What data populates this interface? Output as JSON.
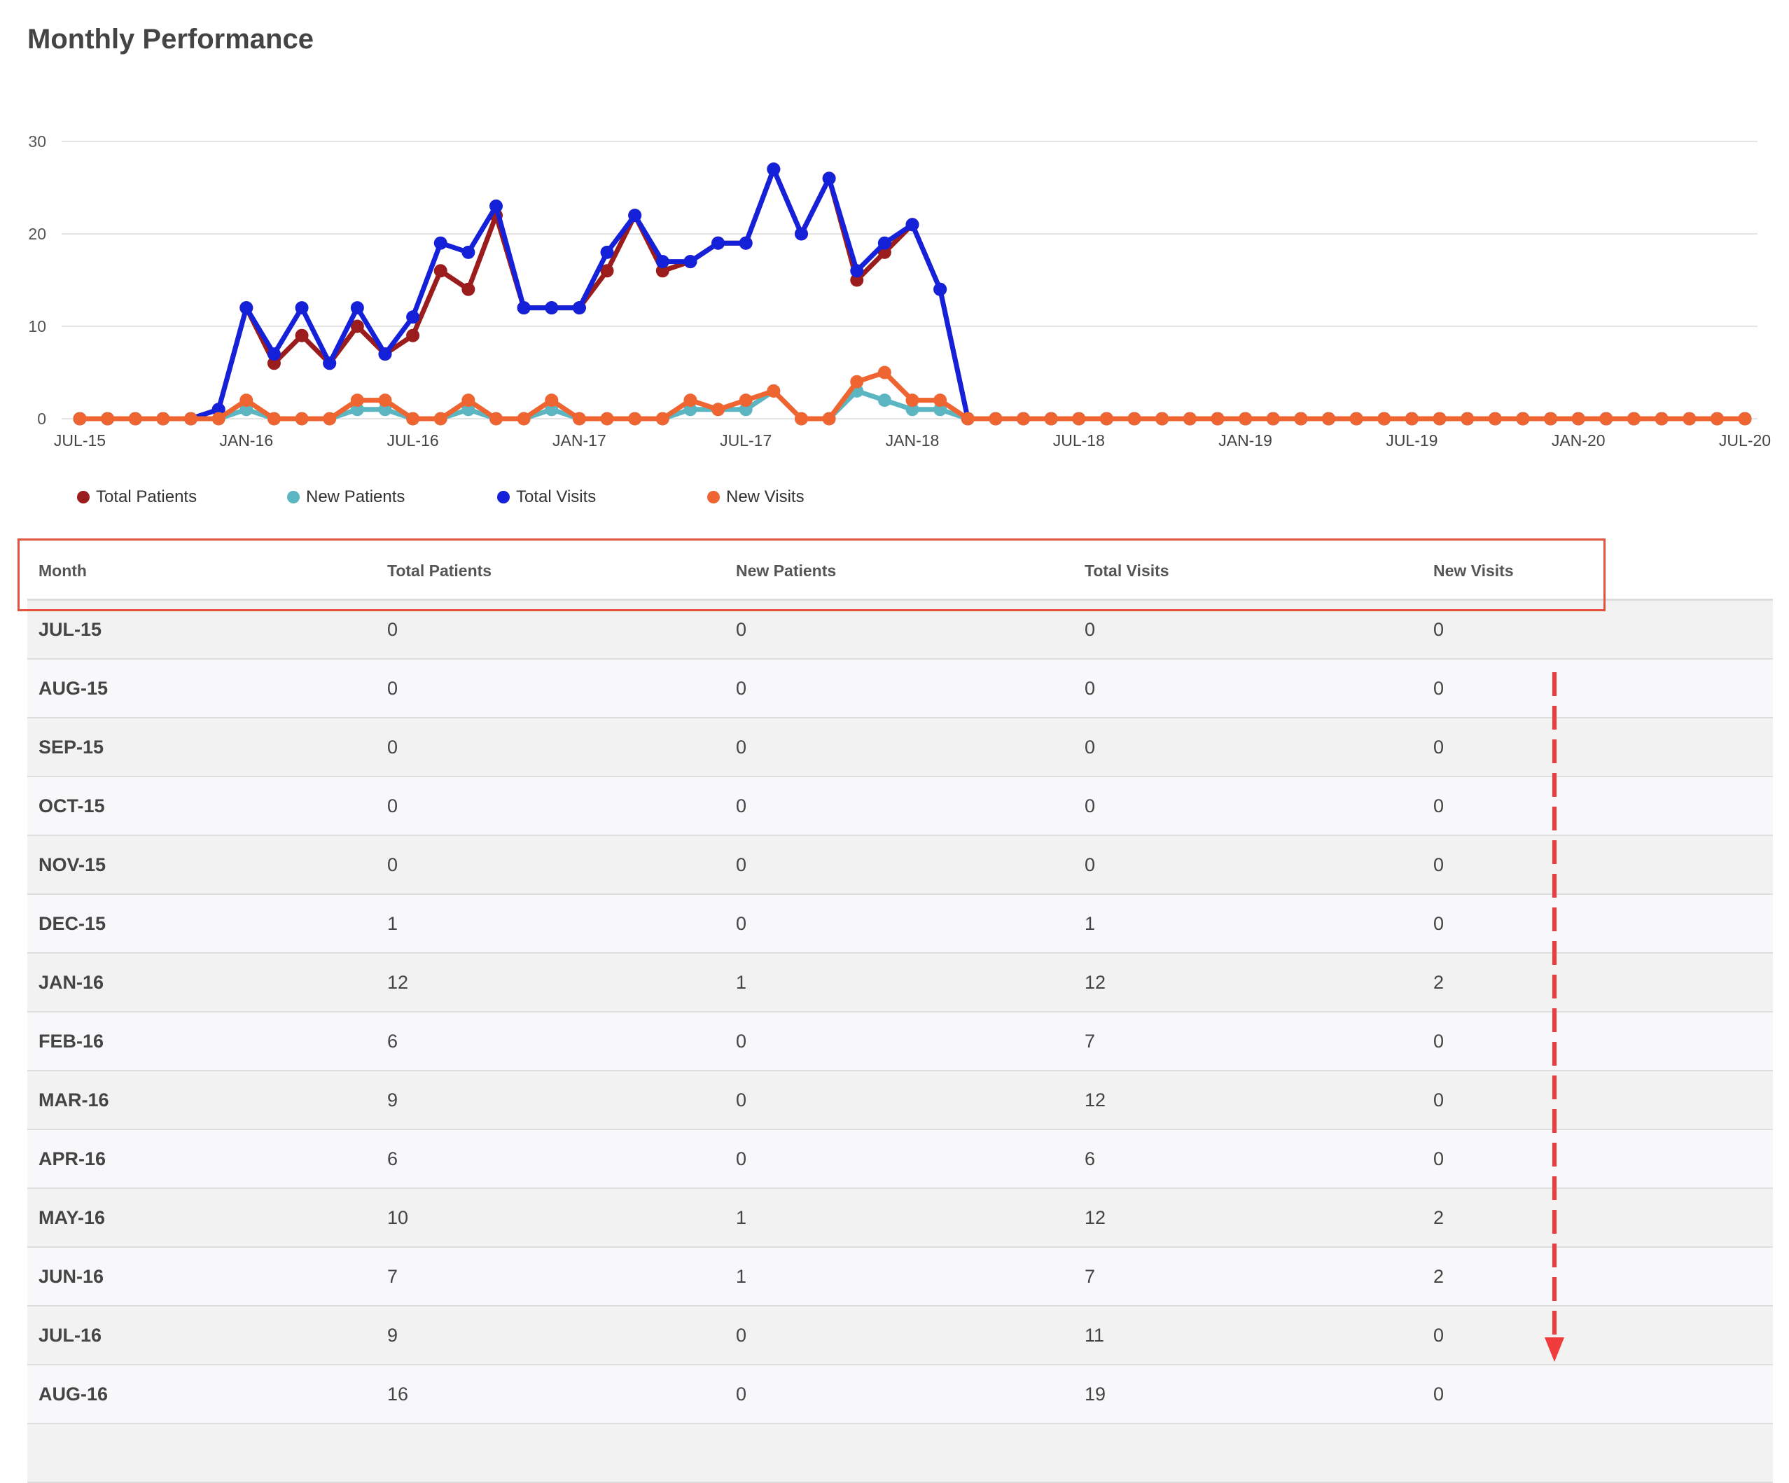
{
  "page": {
    "title": "Monthly Performance"
  },
  "legend": [
    {
      "label": "Total Patients",
      "color": "#9b1c1c"
    },
    {
      "label": "New Patients",
      "color": "#5bb6c1"
    },
    {
      "label": "Total Visits",
      "color": "#1421d8"
    },
    {
      "label": "New Visits",
      "color": "#ef6532"
    }
  ],
  "chart_data": {
    "type": "line",
    "title": "",
    "xlabel": "",
    "ylabel": "",
    "ylim": [
      0,
      30
    ],
    "yticks": [
      "0",
      "10",
      "20",
      "30"
    ],
    "grid": true,
    "legend_position": "bottom-left",
    "x": [
      "JUL-15",
      "AUG-15",
      "SEP-15",
      "OCT-15",
      "NOV-15",
      "DEC-15",
      "JAN-16",
      "FEB-16",
      "MAR-16",
      "APR-16",
      "MAY-16",
      "JUN-16",
      "JUL-16",
      "AUG-16",
      "SEP-16",
      "OCT-16",
      "NOV-16",
      "DEC-16",
      "JAN-17",
      "FEB-17",
      "MAR-17",
      "APR-17",
      "MAY-17",
      "JUN-17",
      "JUL-17",
      "AUG-17",
      "SEP-17",
      "OCT-17",
      "NOV-17",
      "DEC-17",
      "JAN-18",
      "FEB-18",
      "MAR-18",
      "APR-18",
      "MAY-18",
      "JUN-18",
      "JUL-18",
      "AUG-18",
      "SEP-18",
      "OCT-18",
      "NOV-18",
      "DEC-18",
      "JAN-19",
      "FEB-19",
      "MAR-19",
      "APR-19",
      "MAY-19",
      "JUN-19",
      "JUL-19",
      "AUG-19",
      "SEP-19",
      "OCT-19",
      "NOV-19",
      "DEC-19",
      "JAN-20",
      "FEB-20",
      "MAR-20",
      "APR-20",
      "MAY-20",
      "JUN-20",
      "JUL-20"
    ],
    "xtick_labels": [
      "JUL-15",
      "JAN-16",
      "JUL-16",
      "JAN-17",
      "JUL-17",
      "JAN-18",
      "JUL-18",
      "JAN-19",
      "JUL-19",
      "JAN-20",
      "JUL-20"
    ],
    "series": [
      {
        "name": "Total Patients",
        "color": "#9b1c1c",
        "values": [
          0,
          0,
          0,
          0,
          0,
          1,
          12,
          6,
          9,
          6,
          10,
          7,
          9,
          16,
          14,
          22,
          12,
          12,
          12,
          16,
          22,
          16,
          17,
          19,
          19,
          27,
          20,
          26,
          15,
          18,
          21,
          14,
          0,
          0,
          0,
          0,
          0,
          0,
          0,
          0,
          0,
          0,
          0,
          0,
          0,
          0,
          0,
          0,
          0,
          0,
          0,
          0,
          0,
          0,
          0,
          0,
          0,
          0,
          0,
          0,
          0
        ]
      },
      {
        "name": "New Patients",
        "color": "#5bb6c1",
        "values": [
          0,
          0,
          0,
          0,
          0,
          0,
          1,
          0,
          0,
          0,
          1,
          1,
          0,
          0,
          1,
          0,
          0,
          1,
          0,
          0,
          0,
          0,
          1,
          1,
          1,
          3,
          0,
          0,
          3,
          2,
          1,
          1,
          0,
          0,
          0,
          0,
          0,
          0,
          0,
          0,
          0,
          0,
          0,
          0,
          0,
          0,
          0,
          0,
          0,
          0,
          0,
          0,
          0,
          0,
          0,
          0,
          0,
          0,
          0,
          0,
          0
        ]
      },
      {
        "name": "Total Visits",
        "color": "#1421d8",
        "values": [
          0,
          0,
          0,
          0,
          0,
          1,
          12,
          7,
          12,
          6,
          12,
          7,
          11,
          19,
          18,
          23,
          12,
          12,
          12,
          18,
          22,
          17,
          17,
          19,
          19,
          27,
          20,
          26,
          16,
          19,
          21,
          14,
          0,
          0,
          0,
          0,
          0,
          0,
          0,
          0,
          0,
          0,
          0,
          0,
          0,
          0,
          0,
          0,
          0,
          0,
          0,
          0,
          0,
          0,
          0,
          0,
          0,
          0,
          0,
          0,
          0
        ]
      },
      {
        "name": "New Visits",
        "color": "#ef6532",
        "values": [
          0,
          0,
          0,
          0,
          0,
          0,
          2,
          0,
          0,
          0,
          2,
          2,
          0,
          0,
          2,
          0,
          0,
          2,
          0,
          0,
          0,
          0,
          2,
          1,
          2,
          3,
          0,
          0,
          4,
          5,
          2,
          2,
          0,
          0,
          0,
          0,
          0,
          0,
          0,
          0,
          0,
          0,
          0,
          0,
          0,
          0,
          0,
          0,
          0,
          0,
          0,
          0,
          0,
          0,
          0,
          0,
          0,
          0,
          0,
          0,
          0
        ]
      }
    ]
  },
  "table": {
    "headers": [
      "Month",
      "Total Patients",
      "New Patients",
      "Total Visits",
      "New Visits"
    ],
    "rows": [
      [
        "JUL-15",
        "0",
        "0",
        "0",
        "0"
      ],
      [
        "AUG-15",
        "0",
        "0",
        "0",
        "0"
      ],
      [
        "SEP-15",
        "0",
        "0",
        "0",
        "0"
      ],
      [
        "OCT-15",
        "0",
        "0",
        "0",
        "0"
      ],
      [
        "NOV-15",
        "0",
        "0",
        "0",
        "0"
      ],
      [
        "DEC-15",
        "1",
        "0",
        "1",
        "0"
      ],
      [
        "JAN-16",
        "12",
        "1",
        "12",
        "2"
      ],
      [
        "FEB-16",
        "6",
        "0",
        "7",
        "0"
      ],
      [
        "MAR-16",
        "9",
        "0",
        "12",
        "0"
      ],
      [
        "APR-16",
        "6",
        "0",
        "6",
        "0"
      ],
      [
        "MAY-16",
        "10",
        "1",
        "12",
        "2"
      ],
      [
        "JUN-16",
        "7",
        "1",
        "7",
        "2"
      ],
      [
        "JUL-16",
        "9",
        "0",
        "11",
        "0"
      ],
      [
        "AUG-16",
        "16",
        "0",
        "19",
        "0"
      ],
      [
        "",
        "",
        "",
        "",
        ""
      ]
    ]
  },
  "annotations": {
    "highlight_color": "#e2523f",
    "arrow_color": "#ef3b3b"
  }
}
